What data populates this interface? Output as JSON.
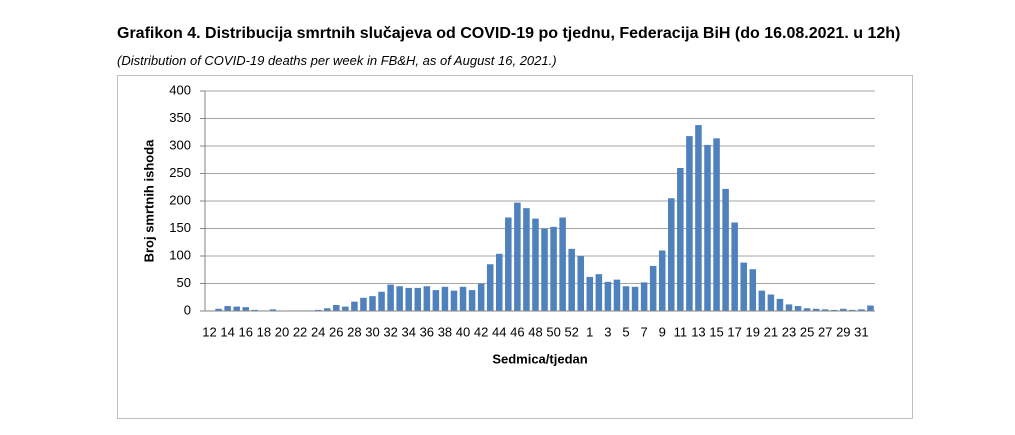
{
  "chart_data": {
    "type": "bar",
    "title": "Grafikon 4. Distribucija smrtnih slučajeva od COVID-19 po tjednu, Federacija BiH (do 16.08.2021. u 12h)",
    "subtitle": "(Distribution of COVID-19 deaths per week in FB&H, as of August 16, 2021.)",
    "y_label": "Broj smrtnih ishoda",
    "x_label": "Sedmica/tjedan",
    "categories": [
      "12",
      null,
      "14",
      null,
      "16",
      null,
      "18",
      null,
      "20",
      null,
      "22",
      null,
      "24",
      null,
      "26",
      null,
      "28",
      null,
      "30",
      null,
      "32",
      null,
      "34",
      null,
      "36",
      null,
      "38",
      null,
      "40",
      null,
      "42",
      null,
      "44",
      null,
      "46",
      null,
      "48",
      null,
      "50",
      null,
      "52",
      null,
      "1",
      null,
      "3",
      null,
      "5",
      null,
      "7",
      null,
      "9",
      null,
      "11",
      null,
      "13",
      null,
      "15",
      null,
      "17",
      null,
      "19",
      null,
      "21",
      null,
      "23",
      null,
      "25",
      null,
      "27",
      null,
      "29",
      null,
      "31",
      null
    ],
    "values": [
      1,
      4,
      9,
      8,
      7,
      2,
      1,
      3,
      1,
      1,
      1,
      1,
      2,
      5,
      11,
      8,
      17,
      24,
      27,
      35,
      48,
      45,
      42,
      42,
      45,
      38,
      44,
      37,
      44,
      38,
      50,
      85,
      104,
      170,
      197,
      187,
      168,
      150,
      153,
      170,
      113,
      100,
      62,
      67,
      53,
      57,
      45,
      44,
      52,
      82,
      110,
      205,
      260,
      318,
      338,
      302,
      314,
      222,
      161,
      88,
      76,
      37,
      30,
      22,
      12,
      9,
      5,
      4,
      3,
      2,
      4,
      2,
      3,
      10
    ],
    "color": "#4f81bd",
    "ylim": [
      0,
      400
    ],
    "yticks": [
      0,
      50,
      100,
      150,
      200,
      250,
      300,
      350,
      400
    ],
    "grid": true
  }
}
